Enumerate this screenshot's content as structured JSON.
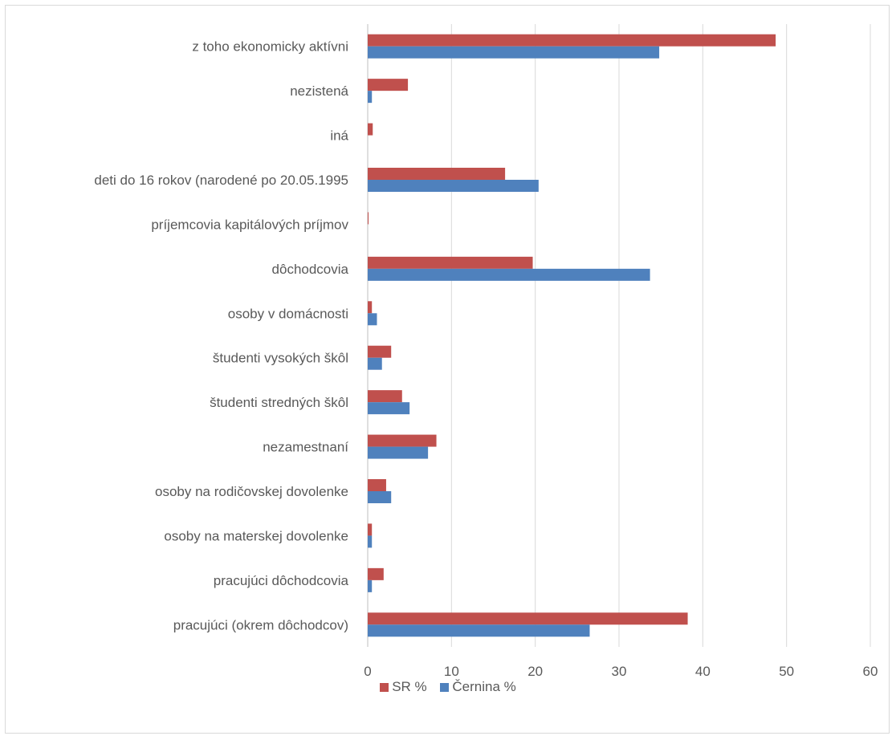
{
  "chart_data": {
    "type": "bar",
    "orientation": "horizontal",
    "categories": [
      "pracujúci (okrem dôchodcov)",
      "pracujúci dôchodcovia",
      "osoby na materskej dovolenke",
      "osoby na rodičovskej dovolenke",
      "nezamestnaní",
      "študenti stredných škôl",
      "študenti vysokých škôl",
      "osoby v domácnosti",
      "dôchodcovia",
      "príjemcovia kapitálových príjmov",
      "deti do 16 rokov (narodené po 20.05.1995",
      "iná",
      "nezistená",
      "z toho ekonomicky aktívni"
    ],
    "series": [
      {
        "name": "SR %",
        "color": "#c0504d",
        "values": [
          38.2,
          1.9,
          0.5,
          2.2,
          8.2,
          4.1,
          2.8,
          0.5,
          19.7,
          0.1,
          16.4,
          0.6,
          4.8,
          48.7
        ]
      },
      {
        "name": "Černina %",
        "color": "#4f81bd",
        "values": [
          26.5,
          0.5,
          0.5,
          2.8,
          7.2,
          5.0,
          1.7,
          1.1,
          33.7,
          0.0,
          20.4,
          0.0,
          0.5,
          34.8
        ]
      }
    ],
    "xlim": [
      0,
      60
    ],
    "xticks": [
      "0",
      "10",
      "20",
      "30",
      "40",
      "50",
      "60"
    ],
    "grid": true,
    "legend_position": "bottom",
    "title": "",
    "xlabel": "",
    "ylabel": ""
  }
}
